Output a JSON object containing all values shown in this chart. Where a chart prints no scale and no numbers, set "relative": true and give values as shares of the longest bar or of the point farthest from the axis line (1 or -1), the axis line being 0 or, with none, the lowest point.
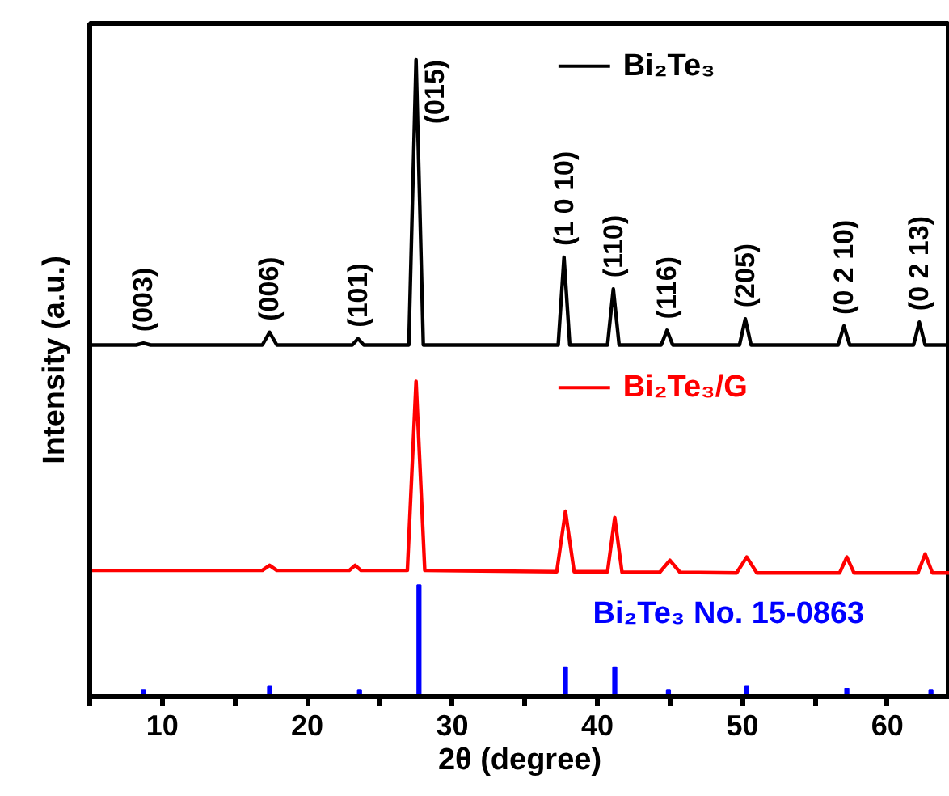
{
  "chart_data": {
    "type": "line",
    "relative": true,
    "xlabel": "2θ (degree)",
    "ylabel": "Intensity (a.u.)",
    "xlim": [
      5,
      64.3
    ],
    "xticks": [
      {
        "value": 5,
        "label": null
      },
      10,
      {
        "value": 15,
        "label": null
      },
      20,
      {
        "value": 25,
        "label": null
      },
      30,
      {
        "value": 35,
        "label": null
      },
      40,
      {
        "value": 45,
        "label": null
      },
      50,
      {
        "value": 55,
        "label": null
      },
      60
    ],
    "tick_labels": "x",
    "grid": false,
    "legend": "top right",
    "line_style": "solid",
    "marker": "none",
    "series": [
      {
        "name": "Bi₂Te₃",
        "color": "#000000",
        "x": [
          5,
          8.2,
          8.7,
          9.2,
          16.9,
          17.4,
          17.9,
          23.1,
          23.5,
          23.9,
          27.0,
          27.5,
          28.0,
          33.0,
          37.3,
          37.7,
          38.1,
          40.7,
          41.1,
          41.5,
          44.4,
          44.8,
          45.2,
          49.8,
          50.2,
          50.6,
          56.6,
          57.0,
          57.4,
          61.8,
          62.2,
          62.6,
          64.3
        ],
        "values": [
          0.552,
          0.552,
          0.555,
          0.552,
          0.552,
          0.572,
          0.552,
          0.552,
          0.562,
          0.552,
          0.552,
          1.0,
          0.552,
          0.552,
          0.552,
          0.69,
          0.552,
          0.552,
          0.64,
          0.552,
          0.552,
          0.575,
          0.552,
          0.552,
          0.593,
          0.552,
          0.552,
          0.582,
          0.552,
          0.552,
          0.588,
          0.552,
          0.552
        ]
      },
      {
        "name": "Bi₂Te₃/G",
        "color": "#ff0000",
        "x": [
          5,
          16.9,
          17.4,
          17.9,
          22.9,
          23.3,
          23.7,
          26.9,
          27.5,
          28.1,
          37.2,
          37.8,
          38.4,
          40.7,
          41.2,
          41.7,
          44.3,
          45.0,
          45.7,
          49.6,
          50.3,
          51.0,
          56.7,
          57.2,
          57.7,
          62.1,
          62.6,
          63.1,
          64.3
        ],
        "values": [
          0.198,
          0.198,
          0.206,
          0.198,
          0.198,
          0.206,
          0.198,
          0.198,
          0.495,
          0.198,
          0.196,
          0.291,
          0.196,
          0.196,
          0.281,
          0.195,
          0.195,
          0.214,
          0.195,
          0.194,
          0.219,
          0.194,
          0.194,
          0.219,
          0.194,
          0.194,
          0.224,
          0.194,
          0.194
        ]
      },
      {
        "name": "Bi₂Te₃ No. 15-0863",
        "color": "#0000ff",
        "type": "bar",
        "x": [
          8.7,
          17.4,
          23.6,
          27.7,
          37.8,
          41.2,
          44.9,
          50.3,
          57.2,
          63.0
        ],
        "values": [
          0.01,
          0.016,
          0.01,
          0.175,
          0.046,
          0.046,
          0.01,
          0.016,
          0.012,
          0.01
        ]
      }
    ],
    "annotations": [
      {
        "text": "(003)",
        "x": 8.7,
        "y": 0.555
      },
      {
        "text": "(006)",
        "x": 17.4,
        "y": 0.572
      },
      {
        "text": "(101)",
        "x": 23.5,
        "y": 0.562
      },
      {
        "text": "(015)",
        "x": 27.5,
        "y": 1.0
      },
      {
        "text": "(1 0 10)",
        "x": 37.7,
        "y": 0.69
      },
      {
        "text": "(110)",
        "x": 41.1,
        "y": 0.64
      },
      {
        "text": "(116)",
        "x": 44.8,
        "y": 0.575
      },
      {
        "text": "(205)",
        "x": 50.2,
        "y": 0.593
      },
      {
        "text": "(0 2 10)",
        "x": 57.0,
        "y": 0.582
      },
      {
        "text": "(0 2 13)",
        "x": 62.2,
        "y": 0.588
      }
    ]
  }
}
